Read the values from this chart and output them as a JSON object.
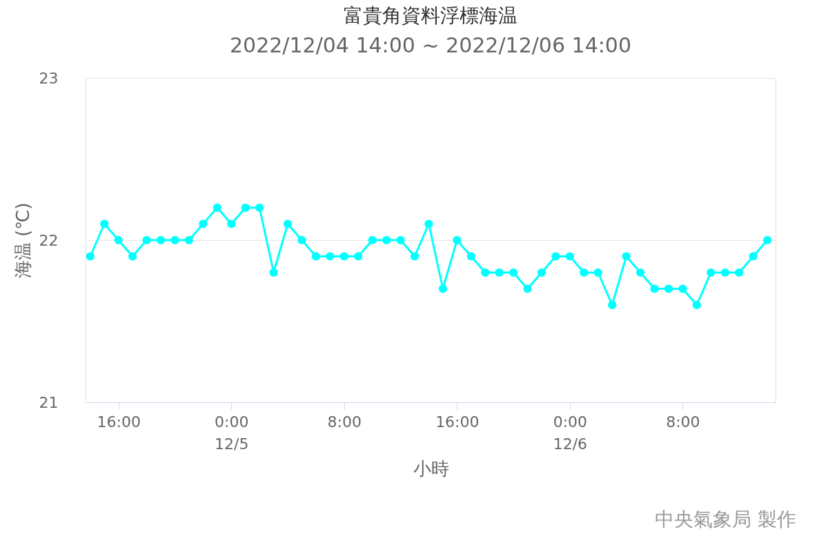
{
  "chart_data": {
    "type": "line",
    "title": "富貴角資料浮標海温",
    "subtitle": "2022/12/04 14:00 ~ 2022/12/06 14:00",
    "xlabel": "小時",
    "ylabel": "海温 (℃)",
    "x": [
      "2022-12-04T14:00",
      "2022-12-04T15:00",
      "2022-12-04T16:00",
      "2022-12-04T17:00",
      "2022-12-04T18:00",
      "2022-12-04T19:00",
      "2022-12-04T20:00",
      "2022-12-04T21:00",
      "2022-12-04T22:00",
      "2022-12-04T23:00",
      "2022-12-05T00:00",
      "2022-12-05T01:00",
      "2022-12-05T02:00",
      "2022-12-05T03:00",
      "2022-12-05T04:00",
      "2022-12-05T05:00",
      "2022-12-05T06:00",
      "2022-12-05T07:00",
      "2022-12-05T08:00",
      "2022-12-05T09:00",
      "2022-12-05T10:00",
      "2022-12-05T11:00",
      "2022-12-05T12:00",
      "2022-12-05T13:00",
      "2022-12-05T14:00",
      "2022-12-05T15:00",
      "2022-12-05T16:00",
      "2022-12-05T17:00",
      "2022-12-05T18:00",
      "2022-12-05T19:00",
      "2022-12-05T20:00",
      "2022-12-05T21:00",
      "2022-12-05T22:00",
      "2022-12-05T23:00",
      "2022-12-06T00:00",
      "2022-12-06T01:00",
      "2022-12-06T02:00",
      "2022-12-06T03:00",
      "2022-12-06T04:00",
      "2022-12-06T05:00",
      "2022-12-06T06:00",
      "2022-12-06T07:00",
      "2022-12-06T08:00",
      "2022-12-06T09:00",
      "2022-12-06T10:00",
      "2022-12-06T11:00",
      "2022-12-06T12:00",
      "2022-12-06T13:00",
      "2022-12-06T14:00"
    ],
    "series": [
      {
        "color": "#00ffff",
        "values": [
          21.9,
          22.1,
          22.0,
          21.9,
          22.0,
          22.0,
          22.0,
          22.0,
          22.1,
          22.2,
          22.1,
          22.2,
          22.2,
          21.8,
          22.1,
          22.0,
          21.9,
          21.9,
          21.9,
          21.9,
          22.0,
          22.0,
          22.0,
          21.9,
          22.1,
          21.7,
          22.0,
          21.9,
          21.8,
          21.8,
          21.8,
          21.7,
          21.8,
          21.9,
          21.9,
          21.8,
          21.8,
          21.6,
          21.9,
          21.8,
          21.7,
          21.7,
          21.7,
          21.6,
          21.8,
          21.8,
          21.8,
          21.9,
          22.0
        ]
      }
    ],
    "xlim": [
      "2022-12-04T13:40",
      "2022-12-06T14:35"
    ],
    "xticks": [
      {
        "value": "2022-12-04T16:00",
        "label": "16:00"
      },
      {
        "value": "2022-12-05T00:00",
        "label": "0:00\n12/5"
      },
      {
        "value": "2022-12-05T08:00",
        "label": "8:00"
      },
      {
        "value": "2022-12-05T16:00",
        "label": "16:00"
      },
      {
        "value": "2022-12-06T00:00",
        "label": "0:00\n12/6"
      },
      {
        "value": "2022-12-06T08:00",
        "label": "8:00"
      }
    ],
    "ylim": [
      21,
      23
    ],
    "yticks": [
      21,
      22,
      23
    ],
    "grid": "y",
    "marker": "circle",
    "line_style": "solid",
    "annotations": [
      "中央氣象局 製作"
    ]
  }
}
